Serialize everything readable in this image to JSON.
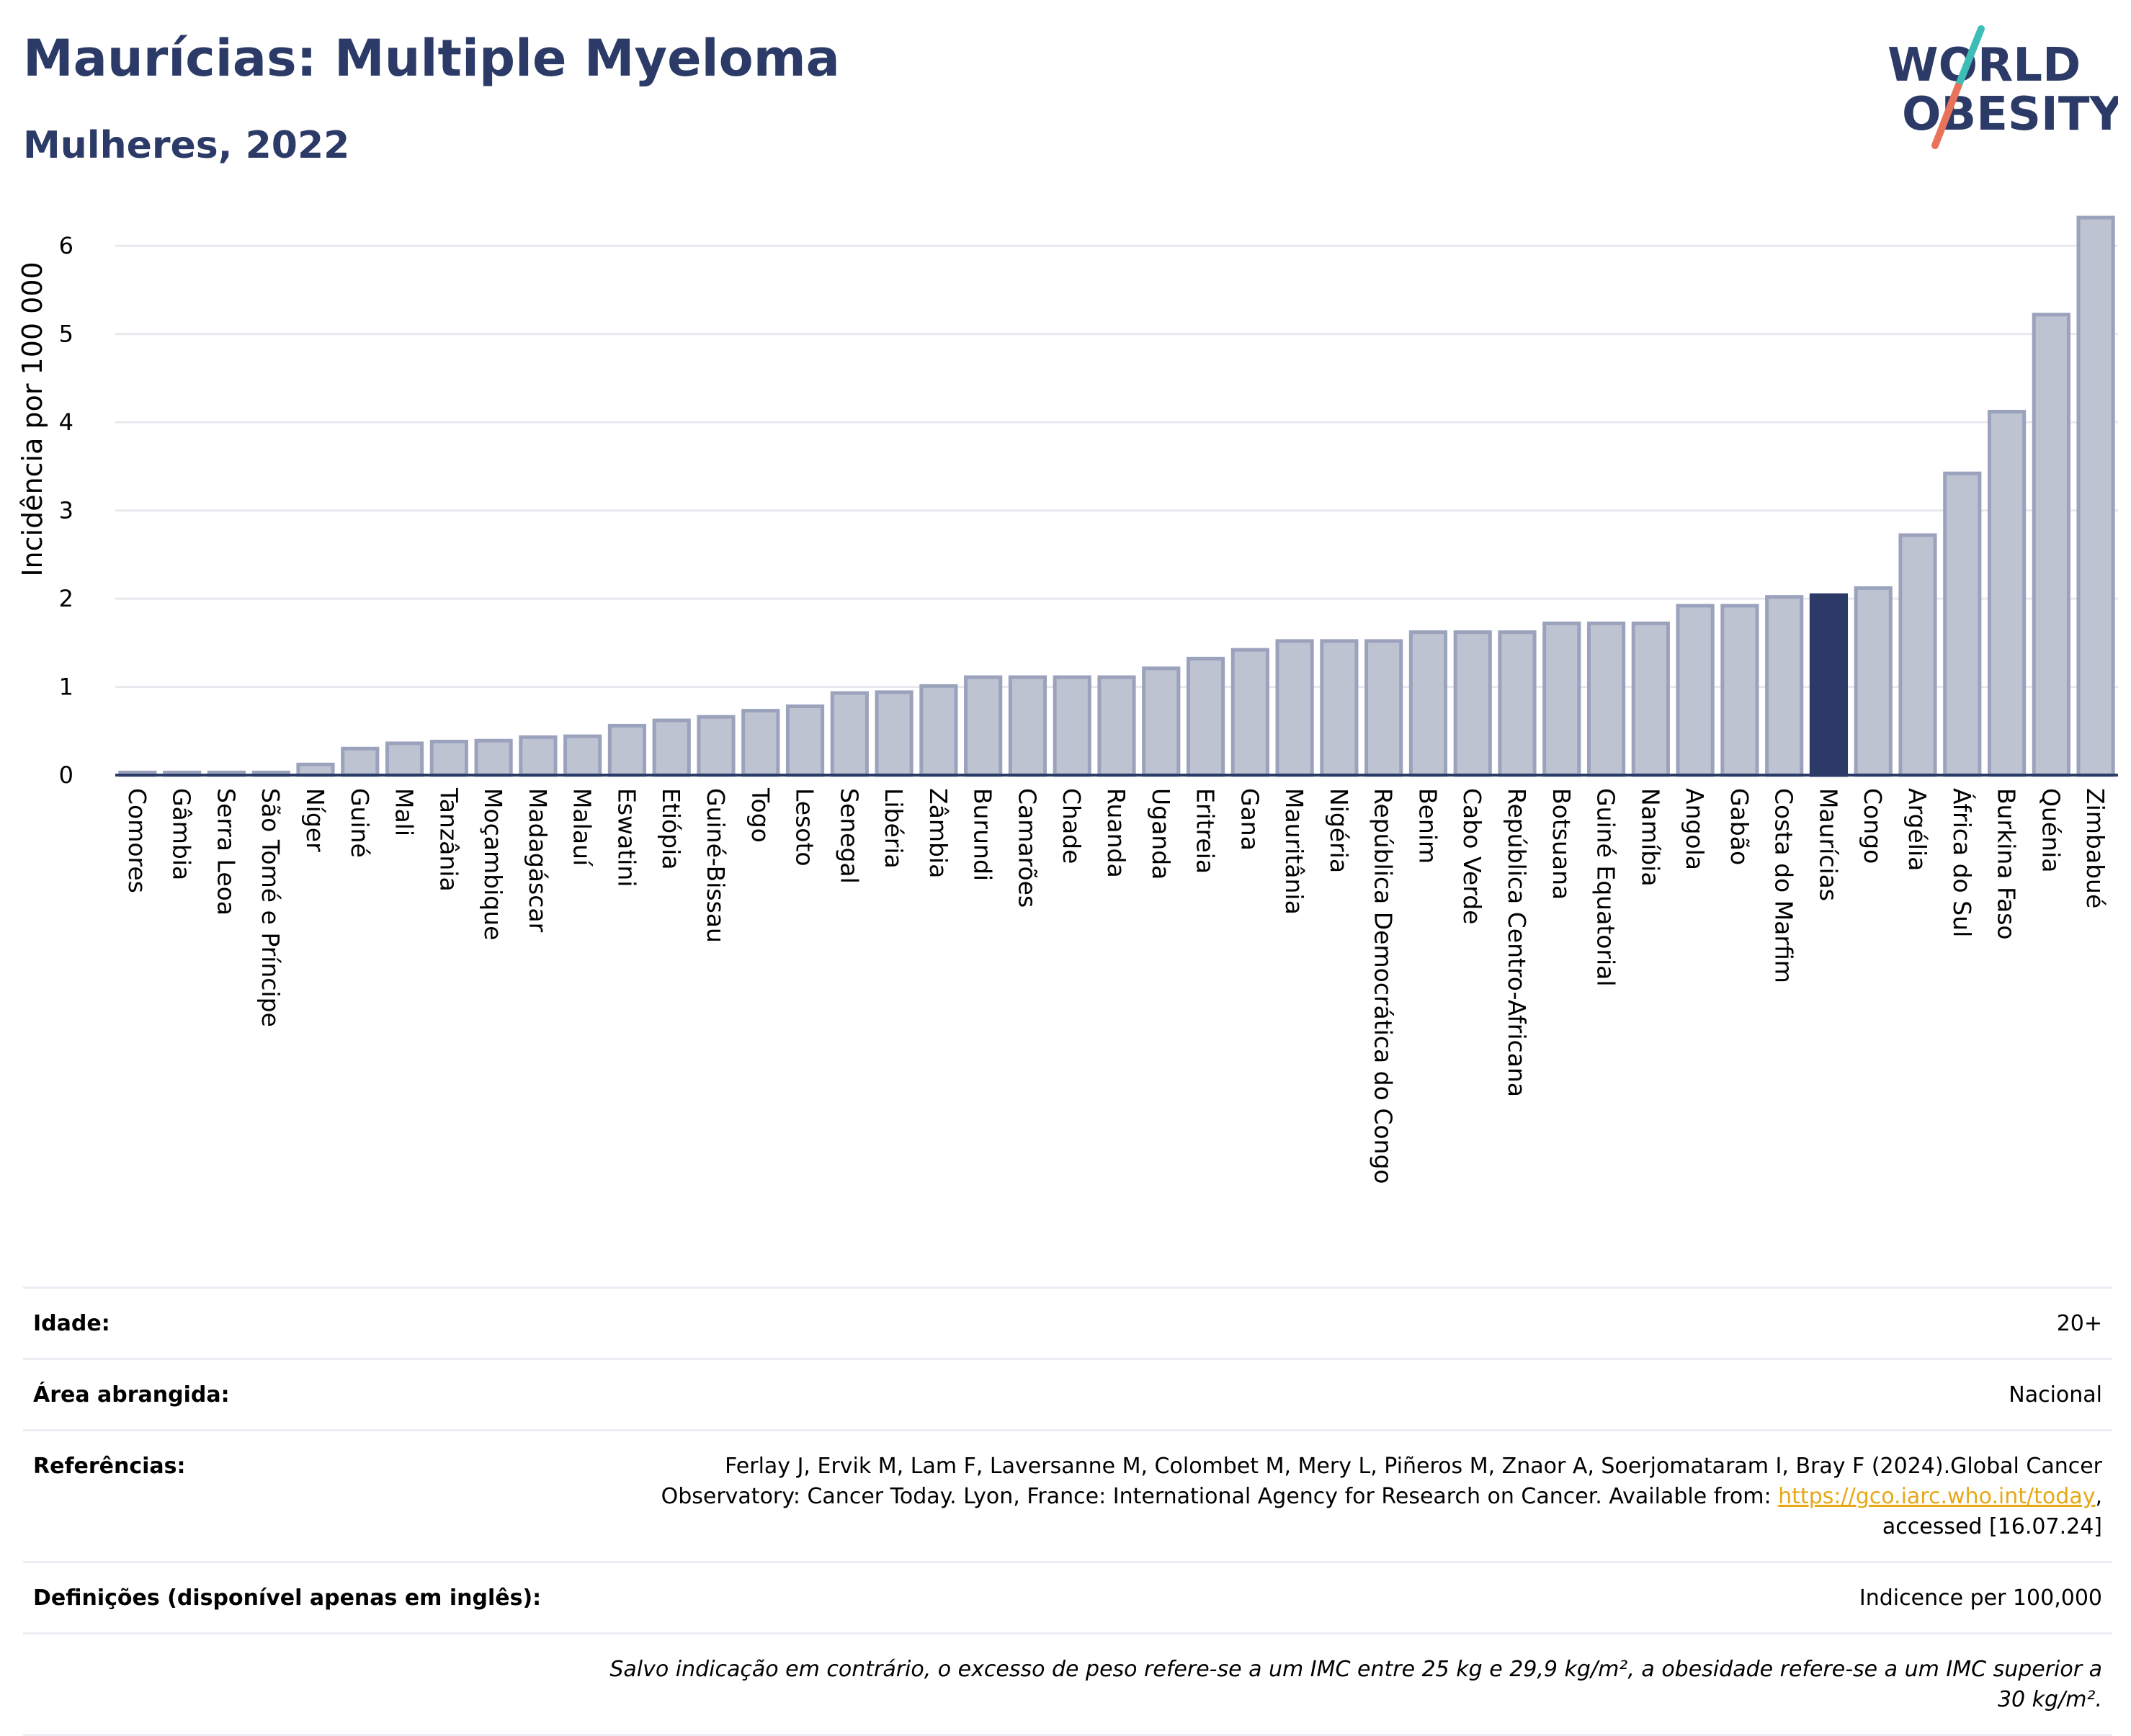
{
  "header": {
    "title": "Maurícias: Multiple Myeloma",
    "subtitle": "Mulheres, 2022"
  },
  "logo": {
    "line1": "WORLD",
    "line2": "OBESITY",
    "accent_colors": [
      "#3dbdb8",
      "#e8735a"
    ]
  },
  "chart_data": {
    "type": "bar",
    "ylabel": "Incidência por 100 000",
    "ylim": [
      0,
      6.5
    ],
    "yticks": [
      0,
      1,
      2,
      3,
      4,
      5,
      6
    ],
    "grid": true,
    "highlight_category": "Maurícias",
    "colors": {
      "bar": "#bec3d2",
      "bar_edge": "#9ba2bc",
      "highlight": "#2b3a67"
    },
    "categories": [
      "Comores",
      "Gâmbia",
      "Serra Leoa",
      "São Tomé e Príncipe",
      "Níger",
      "Guiné",
      "Mali",
      "Tanzânia",
      "Moçambique",
      "Madagáscar",
      "Malauí",
      "Eswatini",
      "Etiópia",
      "Guiné-Bissau",
      "Togo",
      "Lesoto",
      "Senegal",
      "Libéria",
      "Zâmbia",
      "Burundi",
      "Camarões",
      "Chade",
      "Ruanda",
      "Uganda",
      "Eritreia",
      "Gana",
      "Mauritânia",
      "Nigéria",
      "República Democrática do Congo",
      "Benim",
      "Cabo Verde",
      "República Centro-Africana",
      "Botsuana",
      "Guiné Equatorial",
      "Namíbia",
      "Angola",
      "Gabão",
      "Costa do Marfim",
      "Maurícias",
      "Congo",
      "Argélia",
      "África do Sul",
      "Burkina Faso",
      "Quénia",
      "Zimbabué"
    ],
    "values": [
      0.03,
      0.03,
      0.03,
      0.03,
      0.12,
      0.3,
      0.36,
      0.38,
      0.39,
      0.43,
      0.44,
      0.56,
      0.62,
      0.66,
      0.73,
      0.78,
      0.93,
      0.94,
      1.01,
      1.11,
      1.11,
      1.11,
      1.11,
      1.21,
      1.32,
      1.42,
      1.52,
      1.52,
      1.52,
      1.62,
      1.62,
      1.62,
      1.72,
      1.72,
      1.72,
      1.92,
      1.92,
      2.02,
      2.04,
      2.12,
      2.72,
      3.42,
      4.12,
      5.22,
      6.32
    ]
  },
  "meta": {
    "age_label": "Idade:",
    "age_value": "20+",
    "area_label": "Área abrangida:",
    "area_value": "Nacional",
    "ref_label": "Referências:",
    "ref_text_1": "Ferlay J, Ervik M, Lam F, Laversanne M, Colombet M, Mery L, Piñeros M, Znaor A, Soerjomataram I, Bray F (2024).Global Cancer Observatory: Cancer Today. Lyon, France: International Agency for Research on Cancer. Available from: ",
    "ref_link": "https://gco.iarc.who.int/today",
    "ref_text_2": ", accessed [16.07.24]",
    "def_label": "Definições (disponível apenas em inglês):",
    "def_value": "Indicence per 100,000",
    "note": "Salvo indicação em contrário, o excesso de peso refere-se a um IMC entre 25 kg e 29,9 kg/m², a obesidade refere-se a um IMC superior a 30 kg/m²."
  }
}
